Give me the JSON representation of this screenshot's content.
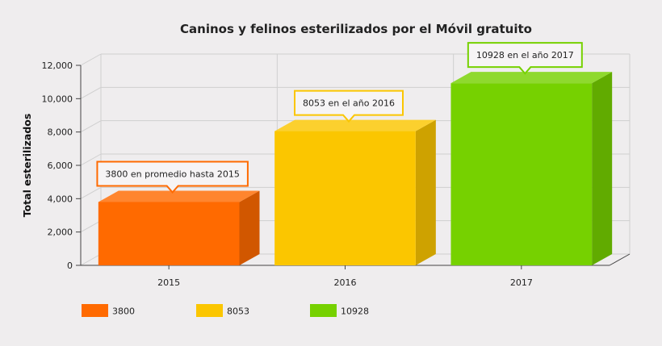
{
  "chart_data": {
    "type": "bar",
    "three_d": true,
    "title": "Caninos y felinos esterilizados por el Móvil gratuito",
    "ylabel": "Total esterilizados",
    "xlabel": "",
    "categories": [
      "2015",
      "2016",
      "2017"
    ],
    "values": [
      3800,
      8053,
      10928
    ],
    "colors": [
      "#ff6a00",
      "#fbc600",
      "#76d100"
    ],
    "ylim": [
      0,
      12000
    ],
    "yticks": [
      0,
      2000,
      4000,
      6000,
      8000,
      10000,
      12000
    ],
    "ytick_labels": [
      "0",
      "2,000",
      "4,000",
      "6,000",
      "8,000",
      "10,000",
      "12,000"
    ],
    "grid": true,
    "tooltips": [
      "3800 en promedio hasta 2015",
      "8053 en el año 2016",
      "10928 en el año 2017"
    ],
    "legend": {
      "placement": "bottom-left",
      "entries": [
        "3800",
        "8053",
        "10928"
      ]
    }
  }
}
